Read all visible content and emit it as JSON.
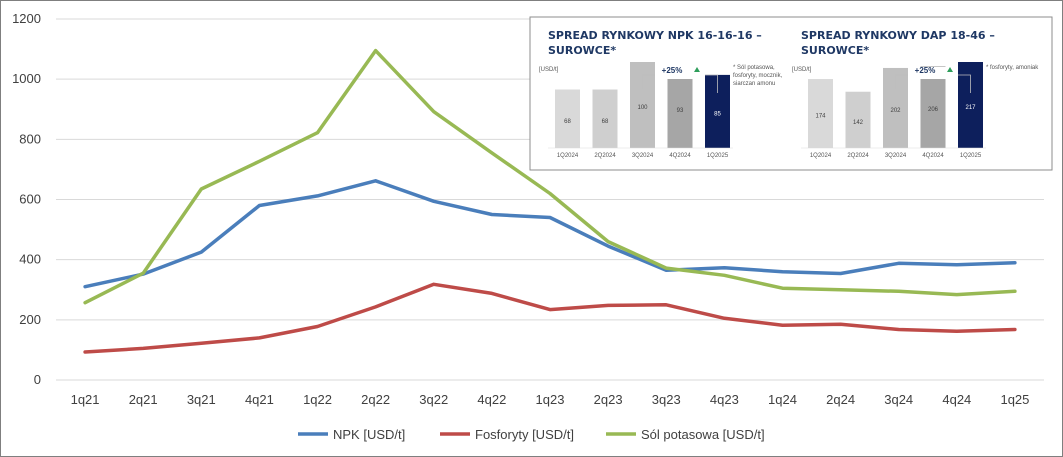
{
  "chart_data": {
    "type": "line",
    "x": [
      "1q21",
      "2q21",
      "3q21",
      "4q21",
      "1q22",
      "2q22",
      "3q22",
      "4q22",
      "1q23",
      "2q23",
      "3q23",
      "4q23",
      "1q24",
      "2q24",
      "3q24",
      "4q24",
      "1q25"
    ],
    "y_ticks": [
      "0",
      "200",
      "400",
      "600",
      "800",
      "1000",
      "1200"
    ],
    "ylim": [
      0,
      1200
    ],
    "grid": "horizontal",
    "legend_position": "bottom",
    "series": [
      {
        "name": "NPK  [USD/t]",
        "color": "#4a7ebb",
        "values": [
          310,
          352,
          425,
          580,
          612,
          662,
          594,
          550,
          540,
          445,
          365,
          373,
          360,
          354,
          388,
          383,
          390
        ]
      },
      {
        "name": "Fosforyty [USD/t]",
        "color": "#be4b48",
        "values": [
          93,
          105,
          122,
          140,
          178,
          243,
          318,
          288,
          234,
          248,
          250,
          205,
          182,
          185,
          168,
          162,
          168
        ]
      },
      {
        "name": "Sól potasowa [USD/t]",
        "color": "#98b954",
        "values": [
          257,
          355,
          635,
          727,
          822,
          1095,
          892,
          755,
          620,
          460,
          372,
          348,
          305,
          300,
          295,
          284,
          295
        ]
      }
    ]
  },
  "insets": [
    {
      "title_line1": "SPREAD RYNKOWY NPK 16-16-16 –",
      "title_line2": "SUROWCE*",
      "unit": "[USD/t]",
      "change": "+25%",
      "footnote_lines": [
        "* Sól potasowa,",
        "fosforyty, mocznik,",
        "siarczan amonu"
      ],
      "bars": [
        {
          "label": "1Q2024",
          "value": 68,
          "color": "#d9d9d9",
          "text_color": "#404040"
        },
        {
          "label": "2Q2024",
          "value": 68,
          "color": "#cfcfcf",
          "text_color": "#404040"
        },
        {
          "label": "3Q2024",
          "value": 100,
          "color": "#bfbfbf",
          "text_color": "#404040"
        },
        {
          "label": "4Q2024",
          "value": 93,
          "color": "#a6a6a6",
          "text_color": "#404040"
        },
        {
          "label": "1Q2025",
          "value": 85,
          "color": "#0d1f5c",
          "text_color": "#ffffff"
        }
      ]
    },
    {
      "title_line1": "SPREAD RYNKOWY DAP 18-46 –",
      "title_line2": "SUROWCE*",
      "unit": "[USD/t]",
      "change": "+25%",
      "footnote_lines": [
        "* fosforyty, amoniak"
      ],
      "bars": [
        {
          "label": "1Q2024",
          "value": 174,
          "color": "#d9d9d9",
          "text_color": "#404040"
        },
        {
          "label": "2Q2024",
          "value": 142,
          "color": "#cfcfcf",
          "text_color": "#404040"
        },
        {
          "label": "3Q2024",
          "value": 202,
          "color": "#bfbfbf",
          "text_color": "#404040"
        },
        {
          "label": "4Q2024",
          "value": 206,
          "color": "#a6a6a6",
          "text_color": "#404040"
        },
        {
          "label": "1Q2025",
          "value": 217,
          "color": "#0d1f5c",
          "text_color": "#ffffff"
        }
      ]
    }
  ]
}
